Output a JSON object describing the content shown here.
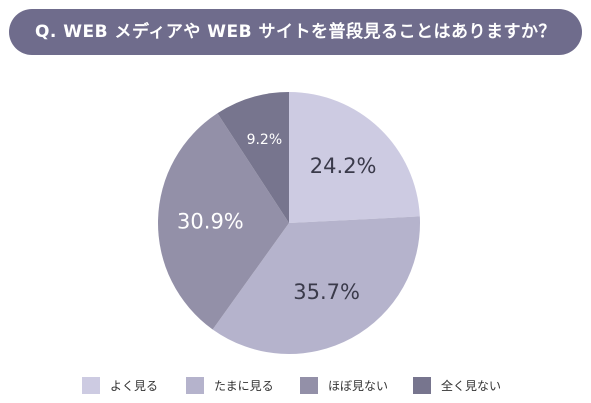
{
  "question": "Q. WEB メディアや WEB サイトを普段見ることはありますか？",
  "colors": {
    "banner": "#6f6c8c",
    "slice_text_light": "#ffffff",
    "slice_text_dark": "#3a3a4a",
    "divider": "#ffffff"
  },
  "chart_data": {
    "type": "pie",
    "title": "",
    "start_angle_deg": 0,
    "direction": "clockwise",
    "slices": [
      {
        "label": "よく見る",
        "value": 24.2,
        "display": "24.2%",
        "color": "#cdcbe2",
        "text": "dark"
      },
      {
        "label": "たまに見る",
        "value": 35.7,
        "display": "35.7%",
        "color": "#b5b3cc",
        "text": "dark"
      },
      {
        "label": "ほぼ見ない",
        "value": 30.9,
        "display": "30.9%",
        "color": "#9390a8",
        "text": "light"
      },
      {
        "label": "全く見ない",
        "value": 9.2,
        "display": "9.2%",
        "color": "#77758e",
        "text": "light"
      }
    ],
    "legend_position": "bottom"
  }
}
